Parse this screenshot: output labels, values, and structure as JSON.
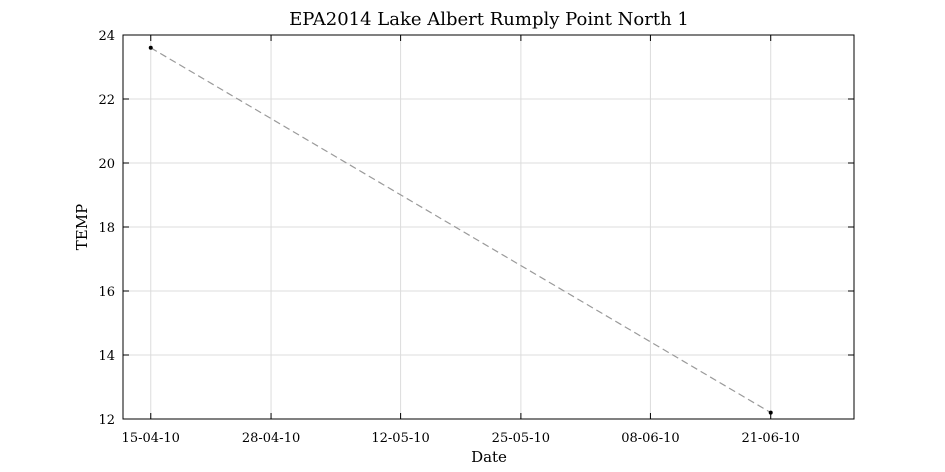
{
  "chart_data": {
    "type": "line",
    "title": "EPA2014 Lake Albert Rumply Point North 1",
    "xlabel": "Date",
    "ylabel": "TEMP",
    "grid": true,
    "x_tick_labels": [
      "15-04-10",
      "28-04-10",
      "12-05-10",
      "25-05-10",
      "08-06-10",
      "21-06-10"
    ],
    "x_tick_days": [
      0,
      13,
      27,
      40,
      54,
      67
    ],
    "xlim_days": [
      -3,
      76
    ],
    "y_ticks": [
      12,
      14,
      16,
      18,
      20,
      22,
      24
    ],
    "ylim": [
      12,
      24
    ],
    "series": [
      {
        "name": "TEMP",
        "x_dates": [
          "15-04-10",
          "21-06-10"
        ],
        "x_days": [
          0,
          67
        ],
        "values": [
          23.6,
          12.2
        ],
        "color": "#9a9a9a",
        "marker_color": "#000000"
      }
    ]
  }
}
